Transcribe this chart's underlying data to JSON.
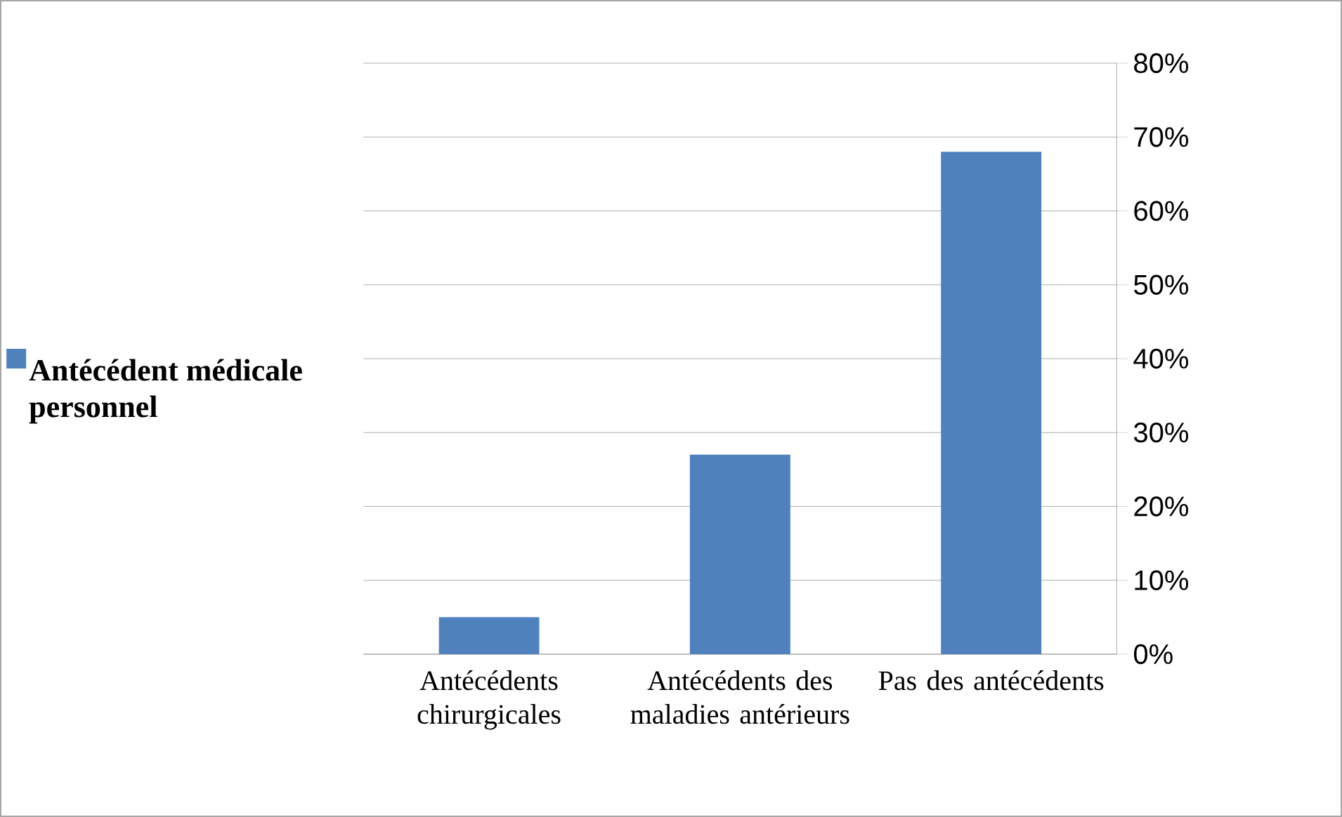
{
  "chart_data": {
    "type": "bar",
    "categories": [
      "Antécédents chirurgicales",
      "Antécédents des maladies antérieurs",
      "Pas des antécédents"
    ],
    "series": [
      {
        "name": "Antécédent médicale personnel",
        "color": "#4f81bd",
        "values": [
          5,
          27,
          68
        ]
      }
    ],
    "ylim": [
      0,
      80
    ],
    "yticks": [
      {
        "value": 0,
        "label": "0%"
      },
      {
        "value": 10,
        "label": "10%"
      },
      {
        "value": 20,
        "label": "20%"
      },
      {
        "value": 30,
        "label": "30%"
      },
      {
        "value": 40,
        "label": "40%"
      },
      {
        "value": 50,
        "label": "50%"
      },
      {
        "value": 60,
        "label": "60%"
      },
      {
        "value": 70,
        "label": "70%"
      },
      {
        "value": 80,
        "label": "80%"
      }
    ],
    "grid": "y",
    "legend": "left"
  }
}
